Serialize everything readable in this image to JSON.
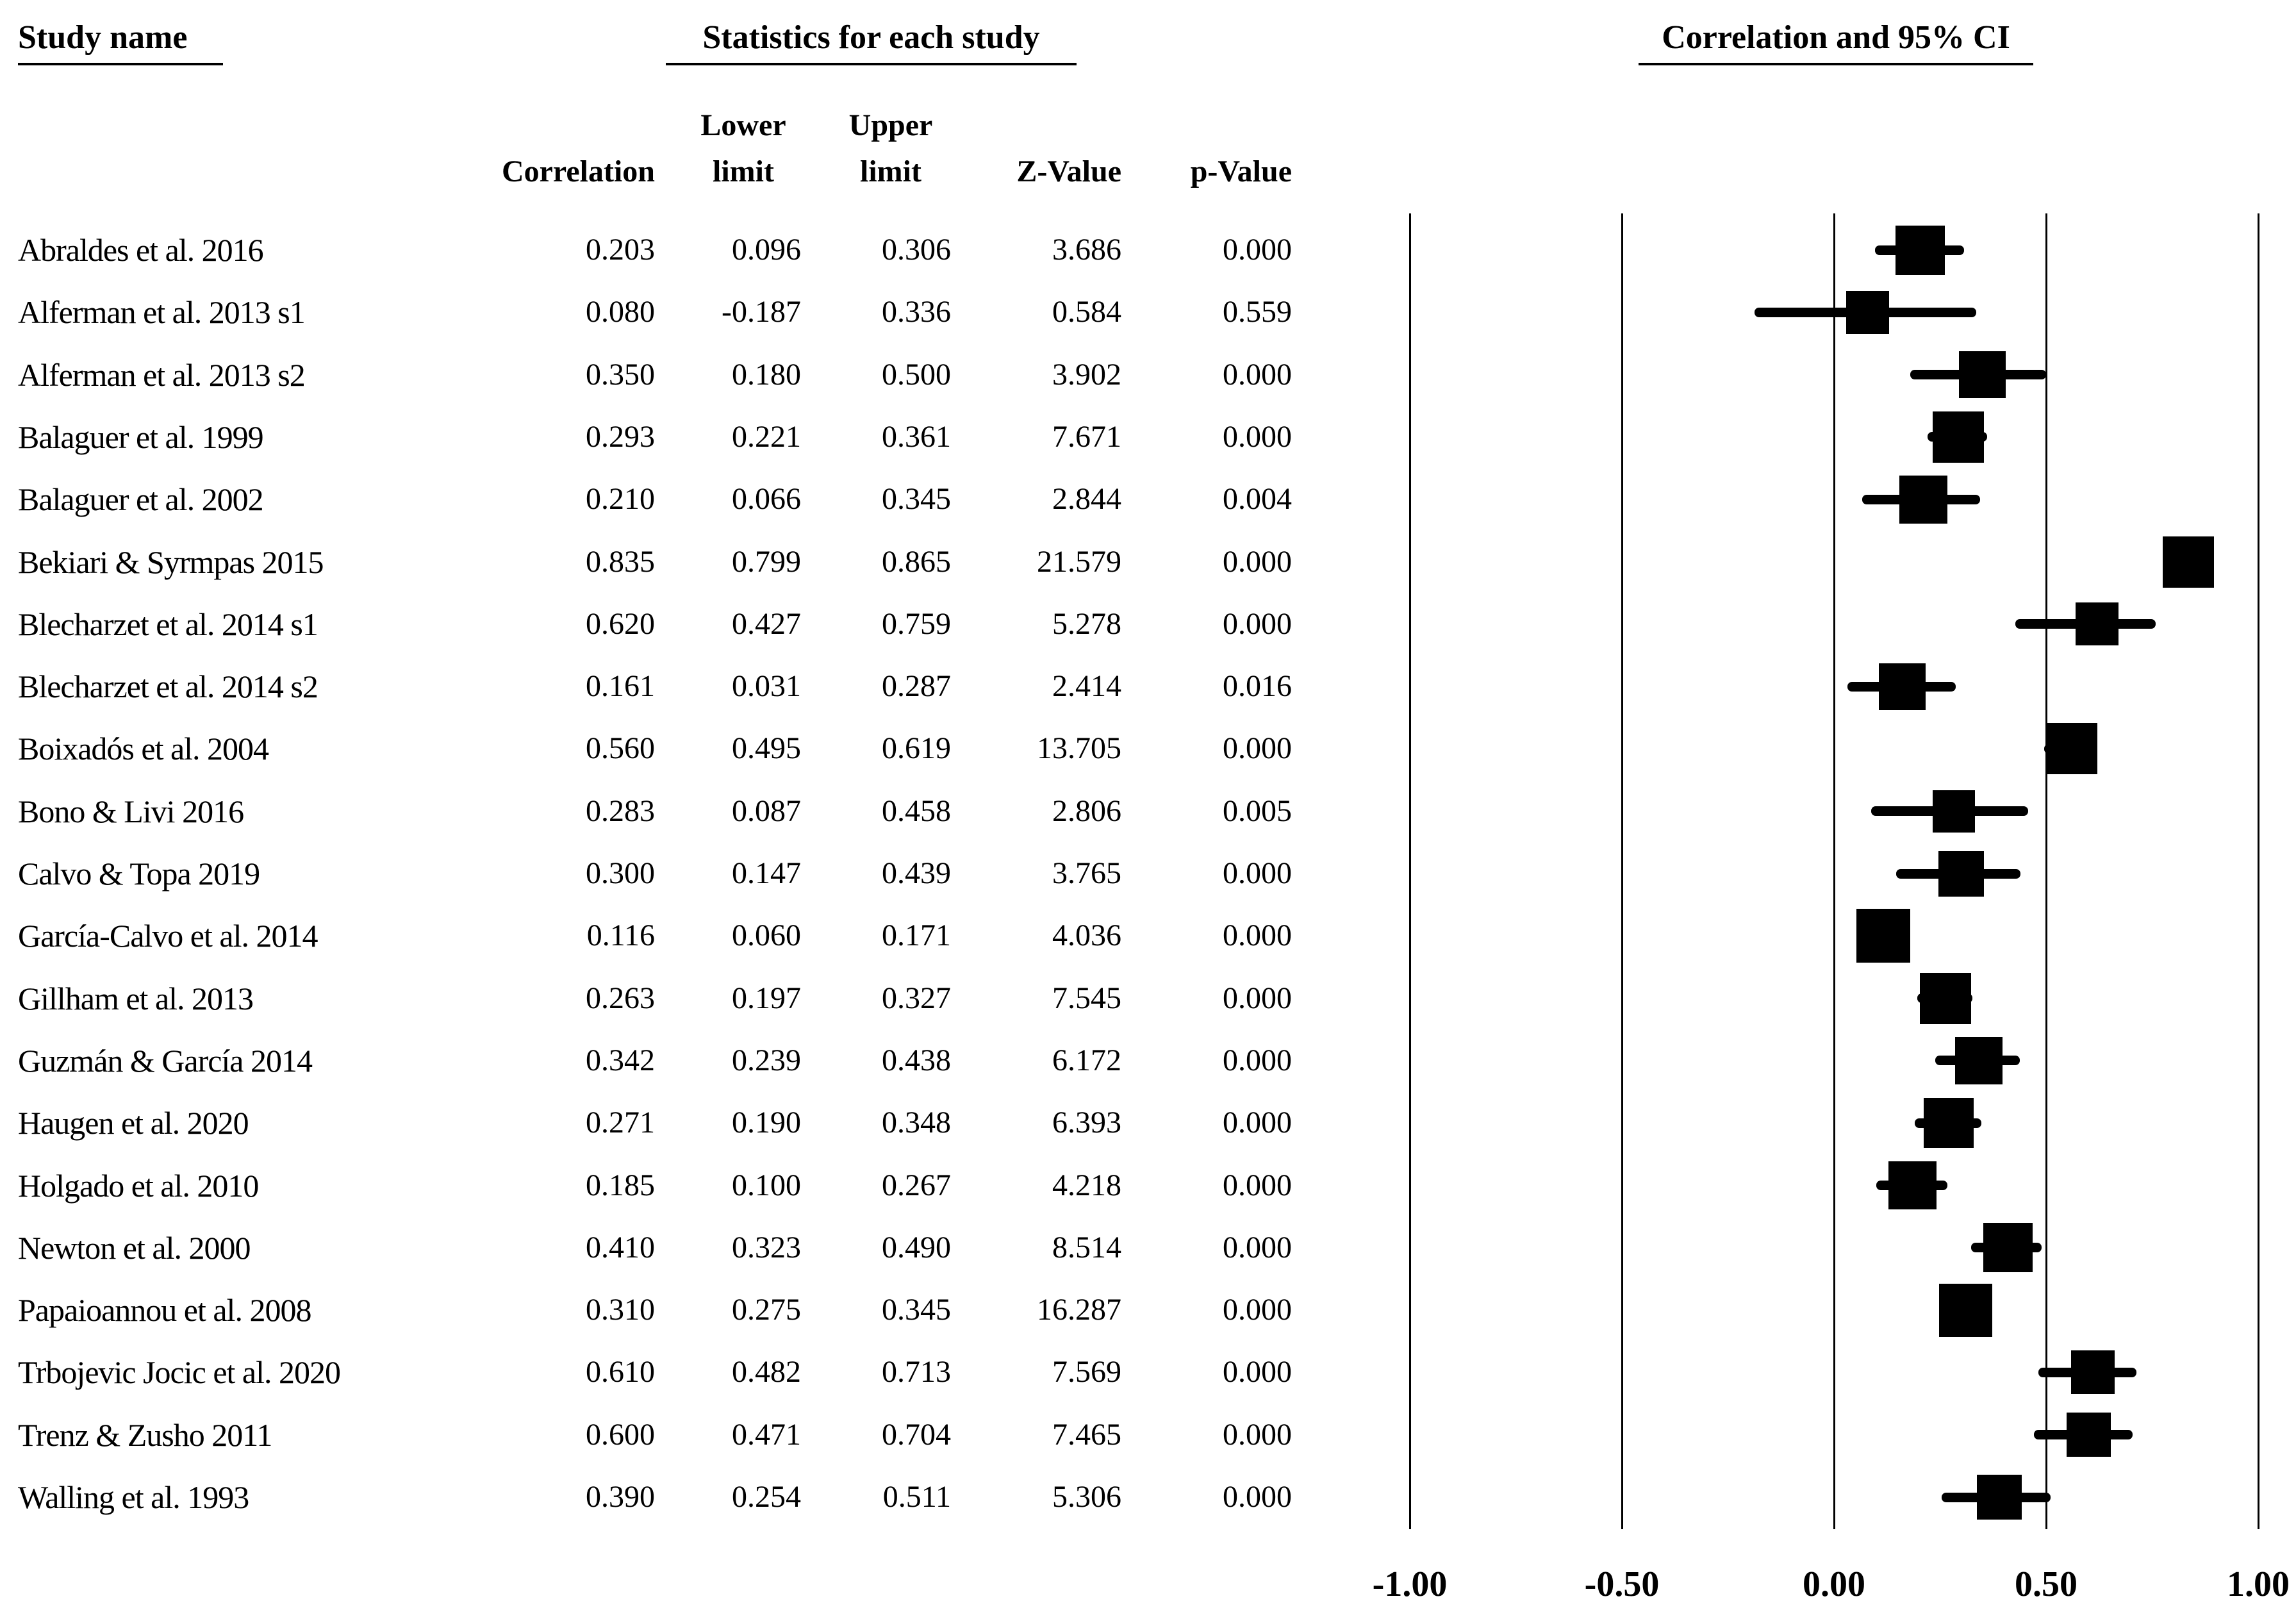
{
  "colors": {
    "background": "#ffffff",
    "ink": "#000000"
  },
  "headers": {
    "study_name": "Study name",
    "statistics": "Statistics for each study",
    "plot_title": "Correlation and 95% CI",
    "col_correlation": "Correlation",
    "col_lower_line1": "Lower",
    "col_lower_line2": "limit",
    "col_upper_line1": "Upper",
    "col_upper_line2": "limit",
    "col_z": "Z-Value",
    "col_p": "p-Value"
  },
  "chart_data": {
    "type": "forest",
    "title": "Correlation and 95% CI",
    "effect_measure": "Correlation",
    "xlim": [
      -1,
      1
    ],
    "grid": "vertical-reference-lines",
    "x_ticks": [
      {
        "label": "-1.00",
        "value": -1.0
      },
      {
        "label": "-0.50",
        "value": -0.5
      },
      {
        "label": "0.00",
        "value": 0.0
      },
      {
        "label": "0.50",
        "value": 0.5
      },
      {
        "label": "1.00",
        "value": 1.0
      }
    ],
    "columns": [
      "Correlation",
      "Lower limit",
      "Upper limit",
      "Z-Value",
      "p-Value"
    ],
    "studies": [
      {
        "name": "Abraldes et al. 2016",
        "correlation": "0.203",
        "lower": "0.096",
        "upper": "0.306",
        "z": "3.686",
        "p": "0.000",
        "marker_px": 77
      },
      {
        "name": "Alferman et al. 2013 s1",
        "correlation": "0.080",
        "lower": "-0.187",
        "upper": "0.336",
        "z": "0.584",
        "p": "0.559",
        "marker_px": 67
      },
      {
        "name": "Alferman et al. 2013 s2",
        "correlation": "0.350",
        "lower": "0.180",
        "upper": "0.500",
        "z": "3.902",
        "p": "0.000",
        "marker_px": 73
      },
      {
        "name": "Balaguer et al. 1999",
        "correlation": "0.293",
        "lower": "0.221",
        "upper": "0.361",
        "z": "7.671",
        "p": "0.000",
        "marker_px": 80
      },
      {
        "name": "Balaguer et al. 2002",
        "correlation": "0.210",
        "lower": "0.066",
        "upper": "0.345",
        "z": "2.844",
        "p": "0.004",
        "marker_px": 75
      },
      {
        "name": "Bekiari & Syrmpas 2015",
        "correlation": "0.835",
        "lower": "0.799",
        "upper": "0.865",
        "z": "21.579",
        "p": "0.000",
        "marker_px": 80
      },
      {
        "name": "Blecharzet et al. 2014 s1",
        "correlation": "0.620",
        "lower": "0.427",
        "upper": "0.759",
        "z": "5.278",
        "p": "0.000",
        "marker_px": 67
      },
      {
        "name": "Blecharzet et al. 2014 s2",
        "correlation": "0.161",
        "lower": "0.031",
        "upper": "0.287",
        "z": "2.414",
        "p": "0.016",
        "marker_px": 73
      },
      {
        "name": "Boixadós et al. 2004",
        "correlation": "0.560",
        "lower": "0.495",
        "upper": "0.619",
        "z": "13.705",
        "p": "0.000",
        "marker_px": 80
      },
      {
        "name": "Bono & Livi 2016",
        "correlation": "0.283",
        "lower": "0.087",
        "upper": "0.458",
        "z": "2.806",
        "p": "0.005",
        "marker_px": 66
      },
      {
        "name": "Calvo & Topa 2019",
        "correlation": "0.300",
        "lower": "0.147",
        "upper": "0.439",
        "z": "3.765",
        "p": "0.000",
        "marker_px": 71
      },
      {
        "name": "García-Calvo et al. 2014",
        "correlation": "0.116",
        "lower": "0.060",
        "upper": "0.171",
        "z": "4.036",
        "p": "0.000",
        "marker_px": 84
      },
      {
        "name": "Gillham et al. 2013",
        "correlation": "0.263",
        "lower": "0.197",
        "upper": "0.327",
        "z": "7.545",
        "p": "0.000",
        "marker_px": 80
      },
      {
        "name": "Guzmán & García 2014",
        "correlation": "0.342",
        "lower": "0.239",
        "upper": "0.438",
        "z": "6.172",
        "p": "0.000",
        "marker_px": 74
      },
      {
        "name": "Haugen et al. 2020",
        "correlation": "0.271",
        "lower": "0.190",
        "upper": "0.348",
        "z": "6.393",
        "p": "0.000",
        "marker_px": 78
      },
      {
        "name": "Holgado et al. 2010",
        "correlation": "0.185",
        "lower": "0.100",
        "upper": "0.267",
        "z": "4.218",
        "p": "0.000",
        "marker_px": 75
      },
      {
        "name": "Newton et al. 2000",
        "correlation": "0.410",
        "lower": "0.323",
        "upper": "0.490",
        "z": "8.514",
        "p": "0.000",
        "marker_px": 77
      },
      {
        "name": "Papaioannou et al. 2008",
        "correlation": "0.310",
        "lower": "0.275",
        "upper": "0.345",
        "z": "16.287",
        "p": "0.000",
        "marker_px": 83
      },
      {
        "name": "Trbojevic Jocic et al. 2020",
        "correlation": "0.610",
        "lower": "0.482",
        "upper": "0.713",
        "z": "7.569",
        "p": "0.000",
        "marker_px": 68
      },
      {
        "name": "Trenz & Zusho 2011",
        "correlation": "0.600",
        "lower": "0.471",
        "upper": "0.704",
        "z": "7.465",
        "p": "0.000",
        "marker_px": 69
      },
      {
        "name": "Walling et al. 1993",
        "correlation": "0.390",
        "lower": "0.254",
        "upper": "0.511",
        "z": "5.306",
        "p": "0.000",
        "marker_px": 70
      }
    ]
  }
}
